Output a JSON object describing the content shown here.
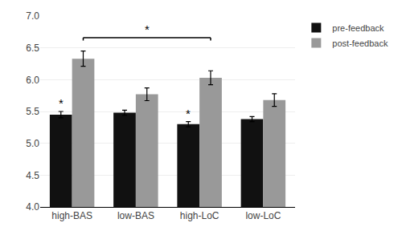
{
  "chart_data": {
    "type": "bar",
    "categories": [
      "high-BAS",
      "low-BAS",
      "high-LoC",
      "low-LoC"
    ],
    "series": [
      {
        "name": "pre-feedback",
        "color": "#111111",
        "values": [
          5.45,
          5.48,
          5.3,
          5.38
        ],
        "errors": [
          0.05,
          0.04,
          0.04,
          0.04
        ]
      },
      {
        "name": "post-feedback",
        "color": "#999999",
        "values": [
          6.33,
          5.77,
          6.03,
          5.68
        ],
        "errors": [
          0.12,
          0.1,
          0.11,
          0.1
        ]
      }
    ],
    "ylim": [
      4.0,
      7.0
    ],
    "yticks": [
      {
        "value": 4.0,
        "label": "4.0"
      },
      4.5,
      {
        "value": 5.0,
        "label": "5.0"
      },
      5.5,
      {
        "value": 6.0,
        "label": "6.0"
      },
      6.5,
      {
        "value": 7.0,
        "label": "7.0"
      }
    ],
    "grid": true,
    "legend": "right",
    "annotations": [
      {
        "text": "*",
        "series": "pre-feedback",
        "category": "high-BAS"
      },
      {
        "text": "*",
        "series": "pre-feedback",
        "category": "high-LoC"
      },
      {
        "text": "*",
        "series": "post-feedback",
        "from": "high-BAS",
        "to": "high-LoC"
      }
    ]
  }
}
